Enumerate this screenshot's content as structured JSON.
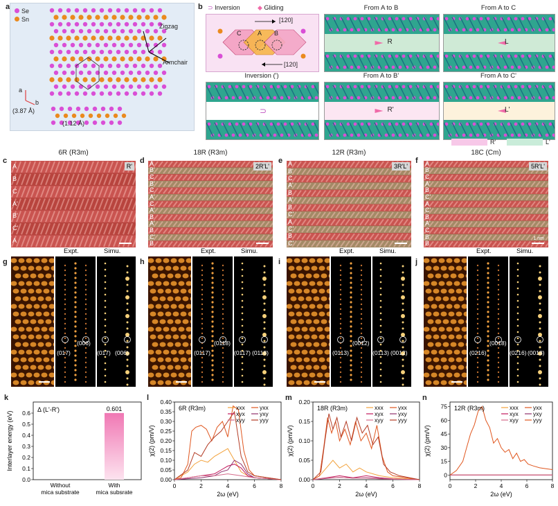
{
  "panel_a": {
    "label": "a",
    "legend": [
      "Se",
      "Sn"
    ],
    "zigzag": "Zigzag",
    "armchair": "Armchair",
    "axis_a": "a",
    "axis_b": "b",
    "lattice": "(3.87 Å)",
    "offset": "(1.12 Å)",
    "colors": {
      "bg": "#e3ecf6",
      "se": "#d94fd6",
      "sn": "#ea8a1e"
    }
  },
  "panel_b": {
    "label": "b",
    "inversion_legend": "Inversion",
    "gliding_legend": "Gliding",
    "dir_120_top": "[120]",
    "dir_120_bottom": "[120]",
    "sites": [
      "C",
      "A",
      "B"
    ],
    "titles": [
      "From A to B",
      "From A to C",
      "Inversion (')",
      "From A to B'",
      "From A to C'"
    ],
    "slide_labels": [
      "R",
      "L",
      "",
      "R'",
      "L'"
    ],
    "legend_r": "R'",
    "legend_l": "L'"
  },
  "stem_panels": [
    {
      "label": "c",
      "title": "6R  (R3m)",
      "badge": "R'",
      "layers": [
        "A",
        "B",
        "C",
        "A'",
        "B'",
        "C'",
        "A"
      ]
    },
    {
      "label": "d",
      "title": "18R  (R3m)",
      "badge": "2R'L'",
      "layers": [
        "A",
        "B'",
        "C",
        "B'",
        "C",
        "A'",
        "C",
        "A'",
        "B",
        "A'",
        "B",
        "C'",
        "B"
      ]
    },
    {
      "label": "e",
      "title": "12R  (R3m)",
      "badge": "3R'L'",
      "layers": [
        "A",
        "B'",
        "C",
        "A'",
        "B",
        "A'",
        "B",
        "C'",
        "A",
        "C'",
        "B",
        "C'"
      ]
    },
    {
      "label": "f",
      "title": "18C  (Cm)",
      "badge": "5R'L'",
      "layers": [
        "A",
        "B'",
        "C",
        "A'",
        "B",
        "C'",
        "A",
        "C'",
        "B",
        "A'",
        "C",
        "B'",
        "B"
      ],
      "scalebar_text": "1 nm"
    }
  ],
  "diffraction_panels": [
    {
      "label": "g",
      "expt": "Expt.",
      "simu": "Simu.",
      "spots": [
        "(017)",
        "(006)"
      ]
    },
    {
      "label": "h",
      "expt": "Expt.",
      "simu": "Simu.",
      "spots": [
        "(0117)",
        "(0118)"
      ]
    },
    {
      "label": "i",
      "expt": "Expt.",
      "simu": "Simu.",
      "spots": [
        "(0113)",
        "(0012)"
      ]
    },
    {
      "label": "j",
      "expt": "Expt.",
      "simu": "Simu.",
      "spots": [
        "(0216)",
        "(0018)"
      ]
    }
  ],
  "chart_data": [
    {
      "panel": "k",
      "type": "bar",
      "title": "Δ (L'-R')",
      "categories": [
        "Without\nmica substrate",
        "With\nmica subsrate"
      ],
      "category_lines": [
        [
          "Without",
          "mica substrate"
        ],
        [
          "With",
          "mica subsrate"
        ]
      ],
      "values": [
        0.0,
        0.601
      ],
      "data_labels": [
        "",
        "0.601"
      ],
      "ylabel": "Interlayer energy (eV)",
      "ylim": [
        0,
        0.7
      ],
      "yticks": [
        0.0,
        0.1,
        0.2,
        0.3,
        0.4,
        0.5,
        0.6
      ],
      "ytick_labels": [
        "0.0",
        "0.1",
        "0.2",
        "0.3",
        "0.4",
        "0.5",
        "0.6"
      ],
      "bar_color": "#f078b4"
    },
    {
      "panel": "l",
      "type": "line",
      "title": "6R (R3m)",
      "xlabel": "2ω (eV)",
      "ylabel": "χ(2) (pm/V)",
      "xlim": [
        0,
        8
      ],
      "ylim": [
        0,
        0.4
      ],
      "xticks": [
        0,
        2,
        4,
        6,
        8
      ],
      "yticks": [
        0.0,
        0.05,
        0.1,
        0.15,
        0.2,
        0.25,
        0.3,
        0.35,
        0.4
      ],
      "ytick_labels": [
        "0.00",
        "0.05",
        "0.10",
        "0.15",
        "0.20",
        "0.25",
        "0.30",
        "0.35",
        "0.40"
      ],
      "legend": [
        "xxx",
        "yxx",
        "xyx",
        "yxy",
        "xyy",
        "yyy"
      ],
      "series": [
        {
          "name": "xxx",
          "color": "#f2a13a",
          "x": [
            0,
            0.5,
            1,
            1.5,
            2,
            2.5,
            3,
            3.5,
            4,
            4.5,
            5,
            5.5,
            6,
            7,
            8
          ],
          "y": [
            0,
            0.02,
            0.04,
            0.08,
            0.1,
            0.09,
            0.12,
            0.14,
            0.16,
            0.1,
            0.04,
            0.02,
            0.01,
            0.005,
            0
          ]
        },
        {
          "name": "yxx",
          "color": "#e0561e",
          "x": [
            0,
            0.5,
            1,
            1.3,
            1.6,
            2,
            2.4,
            2.8,
            3.2,
            3.6,
            4,
            4.4,
            4.8,
            5.2,
            5.6,
            6,
            7,
            8
          ],
          "y": [
            0,
            0.01,
            0.08,
            0.25,
            0.27,
            0.28,
            0.26,
            0.2,
            0.27,
            0.3,
            0.22,
            0.38,
            0.36,
            0.15,
            0.05,
            0.02,
            0.01,
            0
          ]
        },
        {
          "name": "xyx",
          "color": "#c2185b",
          "x": [
            0,
            1,
            2,
            3,
            3.5,
            4,
            4.5,
            5,
            5.5,
            6,
            8
          ],
          "y": [
            0,
            0.01,
            0.02,
            0.03,
            0.05,
            0.07,
            0.08,
            0.06,
            0.02,
            0.01,
            0
          ]
        },
        {
          "name": "yxy",
          "color": "#8e2e6b",
          "x": [
            0,
            1,
            2,
            3,
            3.5,
            4,
            4.5,
            5,
            5.5,
            6,
            8
          ],
          "y": [
            0,
            0.005,
            0.01,
            0.02,
            0.04,
            0.05,
            0.1,
            0.08,
            0.03,
            0.01,
            0
          ]
        },
        {
          "name": "xyy",
          "color": "#d46a8a",
          "x": [
            0,
            1,
            2,
            3,
            4,
            5,
            6,
            8
          ],
          "y": [
            0,
            0.01,
            0.02,
            0.02,
            0.03,
            0.02,
            0.01,
            0
          ]
        },
        {
          "name": "yyy",
          "color": "#b33b24",
          "x": [
            0,
            1,
            1.5,
            2,
            2.5,
            3,
            3.5,
            4,
            4.5,
            5,
            5.5,
            6,
            8
          ],
          "y": [
            0,
            0.05,
            0.14,
            0.12,
            0.18,
            0.22,
            0.25,
            0.3,
            0.35,
            0.12,
            0.04,
            0.02,
            0
          ]
        }
      ]
    },
    {
      "panel": "m",
      "type": "line",
      "title": "18R (R3m)",
      "xlabel": "2ω (eV)",
      "ylabel": "χ(2) (pm/V)",
      "xlim": [
        0,
        8
      ],
      "ylim": [
        0,
        0.2
      ],
      "xticks": [
        0,
        2,
        4,
        6,
        8
      ],
      "yticks": [
        0.0,
        0.05,
        0.1,
        0.15,
        0.2
      ],
      "ytick_labels": [
        "0.00",
        "0.05",
        "0.10",
        "0.15",
        "0.20"
      ],
      "legend": [
        "xxx",
        "yxx",
        "xyx",
        "yxy",
        "xyy",
        "yyy"
      ],
      "series": [
        {
          "name": "xxx",
          "color": "#f2a13a",
          "x": [
            0,
            0.5,
            1,
            1.5,
            2,
            2.5,
            3,
            3.5,
            4,
            5,
            6,
            8
          ],
          "y": [
            0,
            0.01,
            0.03,
            0.05,
            0.03,
            0.04,
            0.02,
            0.03,
            0.02,
            0.01,
            0.005,
            0
          ]
        },
        {
          "name": "yxx",
          "color": "#e0561e",
          "x": [
            0,
            0.5,
            0.8,
            1.1,
            1.4,
            1.7,
            2,
            2.4,
            2.8,
            3.2,
            3.6,
            4,
            4.4,
            4.8,
            5.2,
            5.6,
            6,
            7,
            8
          ],
          "y": [
            0,
            0.01,
            0.08,
            0.16,
            0.12,
            0.15,
            0.1,
            0.13,
            0.09,
            0.15,
            0.1,
            0.12,
            0.08,
            0.14,
            0.06,
            0.02,
            0.01,
            0.005,
            0
          ]
        },
        {
          "name": "xyx",
          "color": "#c2185b",
          "x": [
            0,
            1,
            2,
            3,
            4,
            5,
            6,
            8
          ],
          "y": [
            0,
            0.005,
            0.01,
            0.005,
            0.01,
            0.005,
            0.002,
            0
          ]
        },
        {
          "name": "yxy",
          "color": "#8e2e6b",
          "x": [
            0,
            1,
            2,
            3,
            4,
            5,
            6,
            8
          ],
          "y": [
            0,
            0.003,
            0.006,
            0.004,
            0.005,
            0.003,
            0.001,
            0
          ]
        },
        {
          "name": "xyy",
          "color": "#d46a8a",
          "x": [
            0,
            1,
            2,
            3,
            4,
            5,
            6,
            8
          ],
          "y": [
            0,
            0.004,
            0.006,
            0.004,
            0.004,
            0.002,
            0.001,
            0
          ]
        },
        {
          "name": "yyy",
          "color": "#b33b24",
          "x": [
            0,
            0.6,
            0.9,
            1.2,
            1.5,
            1.8,
            2.1,
            2.5,
            2.9,
            3.3,
            3.7,
            4.1,
            4.5,
            4.9,
            5.3,
            5.8,
            6.5,
            8
          ],
          "y": [
            0,
            0.02,
            0.1,
            0.17,
            0.13,
            0.16,
            0.11,
            0.15,
            0.1,
            0.16,
            0.12,
            0.14,
            0.09,
            0.11,
            0.04,
            0.02,
            0.01,
            0
          ]
        }
      ]
    },
    {
      "panel": "n",
      "type": "line",
      "title": "12R (R3m)",
      "xlabel": "2ω (eV)",
      "ylabel": "χ(2) (pm/V)",
      "xlim": [
        0,
        8
      ],
      "ylim": [
        -5,
        80
      ],
      "xticks": [
        0,
        2,
        4,
        6,
        8
      ],
      "yticks": [
        0,
        15,
        30,
        45,
        60,
        75
      ],
      "ytick_labels": [
        "0",
        "15",
        "30",
        "45",
        "60",
        "75"
      ],
      "legend": [
        "xxx",
        "yxx",
        "xyx",
        "yxy",
        "xyy",
        "yyy"
      ],
      "series": [
        {
          "name": "xxx",
          "color": "#f2a13a",
          "x": [
            0,
            8
          ],
          "y": [
            0,
            0
          ]
        },
        {
          "name": "yxx",
          "color": "#e0561e",
          "x": [
            0,
            8
          ],
          "y": [
            0,
            0
          ]
        },
        {
          "name": "xyx",
          "color": "#c2185b",
          "x": [
            0,
            8
          ],
          "y": [
            0,
            0
          ]
        },
        {
          "name": "yxy",
          "color": "#8e2e6b",
          "x": [
            0,
            8
          ],
          "y": [
            0,
            0
          ]
        },
        {
          "name": "xyy",
          "color": "#d46a8a",
          "x": [
            0,
            8
          ],
          "y": [
            0,
            0
          ]
        },
        {
          "name": "yyy",
          "color": "#e0561e",
          "x": [
            0,
            0.5,
            1,
            1.3,
            1.6,
            1.9,
            2.2,
            2.5,
            2.8,
            3.1,
            3.4,
            3.7,
            4,
            4.3,
            4.6,
            4.9,
            5.2,
            5.5,
            5.8,
            6.1,
            6.5,
            7,
            7.5,
            8
          ],
          "y": [
            0,
            5,
            15,
            30,
            45,
            55,
            70,
            75,
            60,
            52,
            35,
            40,
            30,
            25,
            28,
            18,
            24,
            15,
            17,
            12,
            10,
            8,
            7,
            6
          ]
        }
      ]
    }
  ]
}
